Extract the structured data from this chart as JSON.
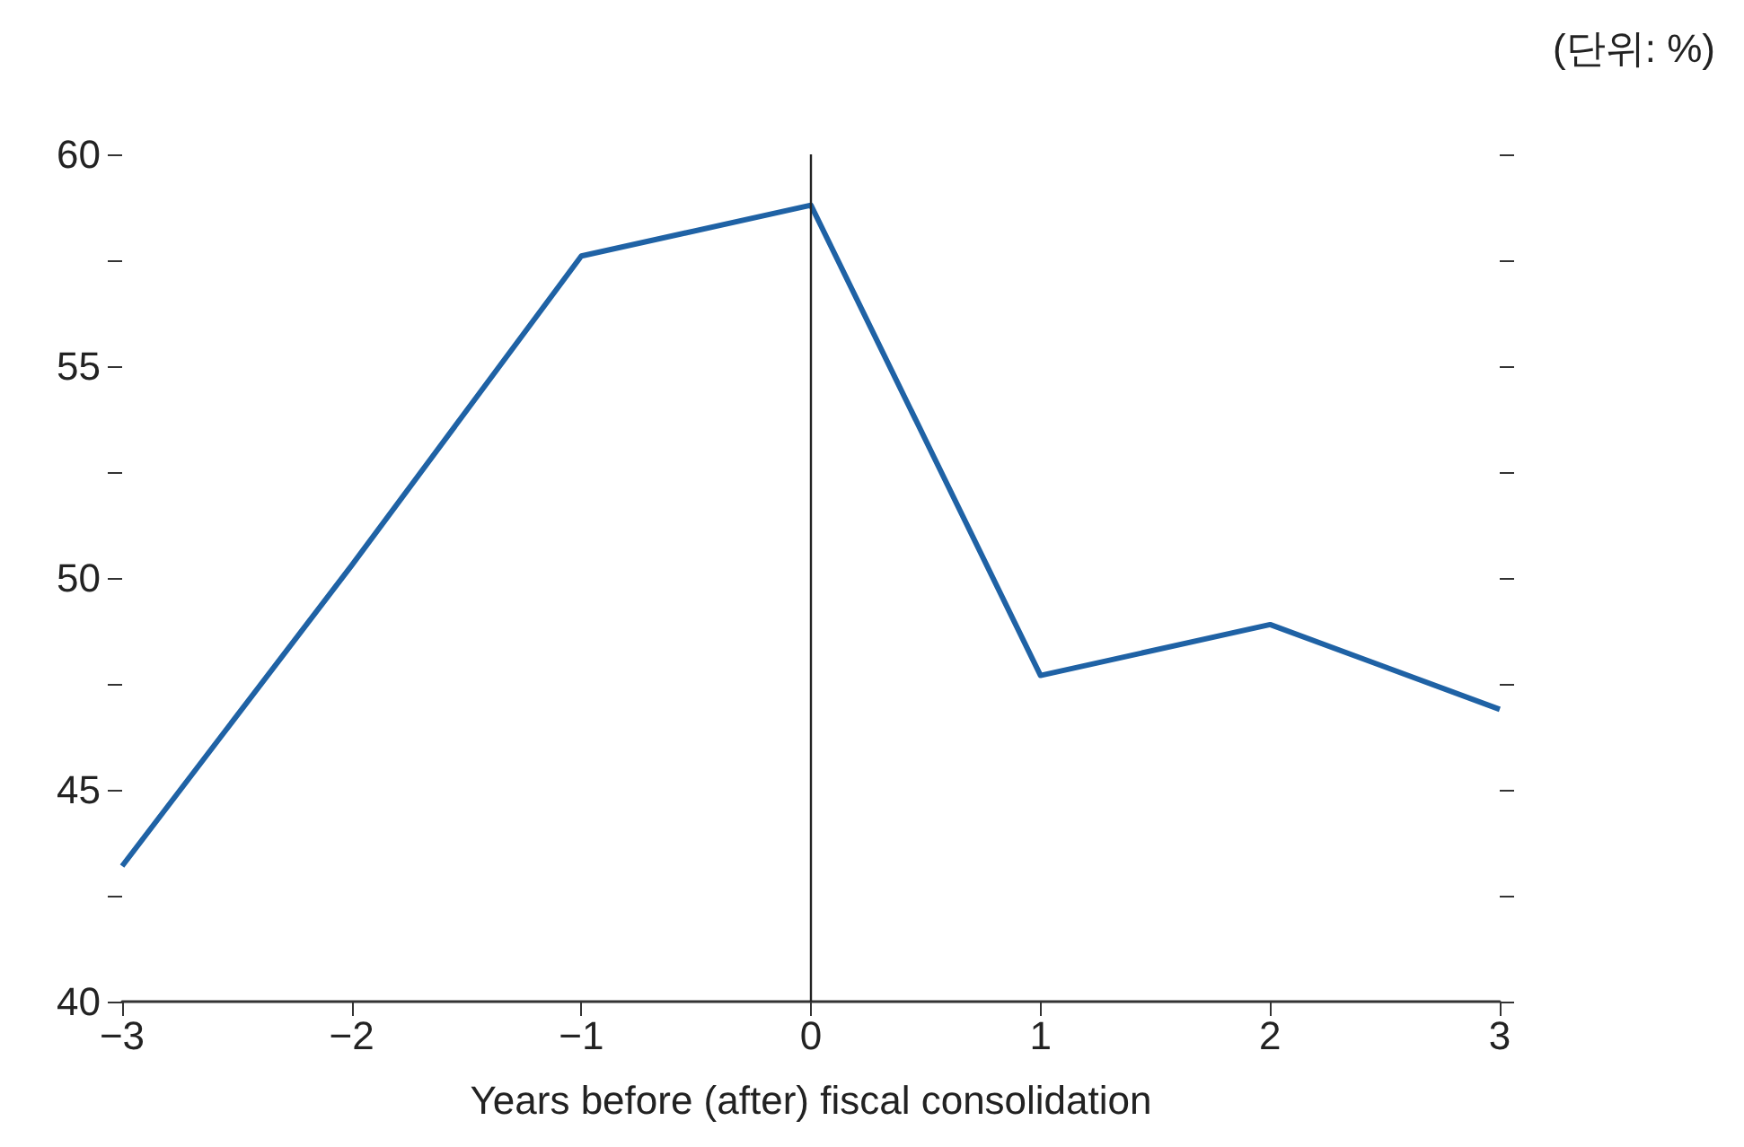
{
  "chart_data": {
    "type": "line",
    "xlabel": "Years before (after) fiscal consolidation",
    "annotations": [
      "(단위: %)"
    ],
    "x": [
      -3,
      -2,
      -1,
      0,
      1,
      2,
      3
    ],
    "series": [
      {
        "color": "#1f62a5",
        "values": [
          43.2,
          50.3,
          57.6,
          58.8,
          47.7,
          48.9,
          46.9
        ]
      }
    ],
    "xlim": [
      -3,
      3
    ],
    "xticks": [
      {
        "value": -3,
        "label": "−3"
      },
      {
        "value": -2,
        "label": "−2"
      },
      {
        "value": -1,
        "label": "−1"
      },
      0,
      1,
      2,
      3
    ],
    "ylim": [
      40,
      60
    ],
    "yticks": [
      40,
      {
        "value": 42.5,
        "label": null
      },
      45,
      {
        "value": 47.5,
        "label": null
      },
      50,
      {
        "value": 52.5,
        "label": null
      },
      55,
      {
        "value": 57.5,
        "label": null
      },
      60
    ],
    "ref_lines": [
      {
        "axis": "x",
        "value": 0,
        "color": "#222222"
      }
    ],
    "grid": false,
    "marker": "none",
    "line_style": "solid"
  }
}
